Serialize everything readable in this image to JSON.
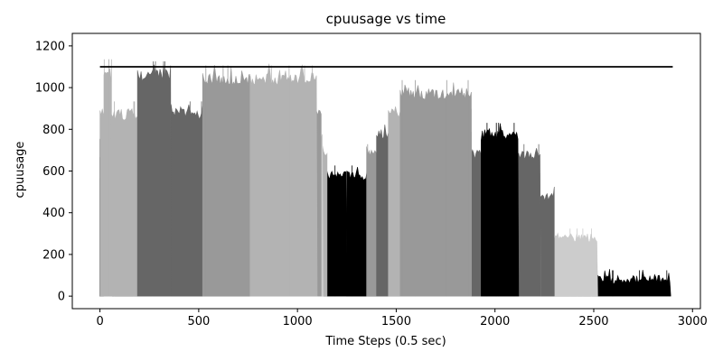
{
  "chart_data": {
    "type": "area",
    "title": "cpuusage vs time",
    "xlabel": "Time Steps (0.5 sec)",
    "ylabel": "cpuusage",
    "xlim": [
      -140,
      3040
    ],
    "ylim": [
      -60,
      1260
    ],
    "xticks": [
      0,
      500,
      1000,
      1500,
      2000,
      2500,
      3000
    ],
    "yticks": [
      0,
      200,
      400,
      600,
      800,
      1000,
      1200
    ],
    "grid": false,
    "legend": "none",
    "capacity_line": {
      "y": 1100,
      "x": [
        0,
        2900
      ],
      "color": "#000000"
    },
    "series_palette": [
      "#b3b3b3",
      "#666666",
      "#000000",
      "#999999",
      "#cccccc",
      "#444444"
    ],
    "series": [
      {
        "start": 0,
        "end": 360,
        "level": 100,
        "jitter": 18,
        "color": "#b3b3b3"
      },
      {
        "start": 360,
        "end": 1260,
        "level": 100,
        "jitter": 18,
        "color": "#666666"
      },
      {
        "start": 1260,
        "end": 1870,
        "level": 100,
        "jitter": 18,
        "color": "#999999"
      },
      {
        "start": 1870,
        "end": 2000,
        "level": 100,
        "jitter": 18,
        "color": "#444444"
      },
      {
        "start": 2000,
        "end": 2300,
        "level": 100,
        "jitter": 18,
        "color": "#b3b3b3"
      },
      {
        "start": 2300,
        "end": 2520,
        "level": 100,
        "jitter": 18,
        "color": "#999999"
      },
      {
        "start": 2520,
        "end": 2890,
        "level": 100,
        "jitter": 20,
        "color": "#000000"
      },
      {
        "start": 40,
        "end": 360,
        "level": 200,
        "jitter": 20,
        "color": "#666666"
      },
      {
        "start": 360,
        "end": 700,
        "level": 200,
        "jitter": 20,
        "color": "#000000"
      },
      {
        "start": 700,
        "end": 1100,
        "level": 200,
        "jitter": 20,
        "color": "#999999"
      },
      {
        "start": 1100,
        "end": 1250,
        "level": 200,
        "jitter": 20,
        "color": "#b3b3b3"
      },
      {
        "start": 1250,
        "end": 1880,
        "level": 200,
        "jitter": 20,
        "color": "#666666"
      },
      {
        "start": 1880,
        "end": 2300,
        "level": 200,
        "jitter": 20,
        "color": "#cccccc"
      },
      {
        "start": 2300,
        "end": 2520,
        "level": 200,
        "jitter": 20,
        "color": "#000000"
      },
      {
        "start": 20,
        "end": 360,
        "level": 300,
        "jitter": 20,
        "color": "#999999"
      },
      {
        "start": 360,
        "end": 830,
        "level": 300,
        "jitter": 20,
        "color": "#666666"
      },
      {
        "start": 830,
        "end": 1250,
        "level": 300,
        "jitter": 20,
        "color": "#b3b3b3"
      },
      {
        "start": 1250,
        "end": 1880,
        "level": 300,
        "jitter": 20,
        "color": "#999999"
      },
      {
        "start": 1880,
        "end": 2300,
        "level": 300,
        "jitter": 20,
        "color": "#666666"
      },
      {
        "start": 2300,
        "end": 2520,
        "level": 300,
        "jitter": 20,
        "color": "#cccccc"
      },
      {
        "start": 10,
        "end": 360,
        "level": 400,
        "jitter": 22,
        "color": "#000000"
      },
      {
        "start": 360,
        "end": 740,
        "level": 400,
        "jitter": 22,
        "color": "#000000"
      },
      {
        "start": 740,
        "end": 1250,
        "level": 400,
        "jitter": 22,
        "color": "#999999"
      },
      {
        "start": 1250,
        "end": 1900,
        "level": 400,
        "jitter": 22,
        "color": "#b3b3b3"
      },
      {
        "start": 1900,
        "end": 2300,
        "level": 400,
        "jitter": 22,
        "color": "#999999"
      },
      {
        "start": 10,
        "end": 360,
        "level": 500,
        "jitter": 22,
        "color": "#b3b3b3"
      },
      {
        "start": 360,
        "end": 760,
        "level": 500,
        "jitter": 22,
        "color": "#666666"
      },
      {
        "start": 760,
        "end": 1250,
        "level": 500,
        "jitter": 22,
        "color": "#b3b3b3"
      },
      {
        "start": 1250,
        "end": 1880,
        "level": 500,
        "jitter": 22,
        "color": "#444444"
      },
      {
        "start": 1880,
        "end": 2300,
        "level": 500,
        "jitter": 22,
        "color": "#666666"
      },
      {
        "start": 0,
        "end": 360,
        "level": 600,
        "jitter": 22,
        "color": "#999999"
      },
      {
        "start": 360,
        "end": 760,
        "level": 600,
        "jitter": 22,
        "color": "#cccccc"
      },
      {
        "start": 760,
        "end": 1250,
        "level": 600,
        "jitter": 22,
        "color": "#000000"
      },
      {
        "start": 1250,
        "end": 1880,
        "level": 600,
        "jitter": 22,
        "color": "#000000"
      },
      {
        "start": 1880,
        "end": 2230,
        "level": 600,
        "jitter": 22,
        "color": "#b3b3b3"
      },
      {
        "start": 0,
        "end": 360,
        "level": 700,
        "jitter": 24,
        "color": "#666666"
      },
      {
        "start": 360,
        "end": 760,
        "level": 700,
        "jitter": 24,
        "color": "#000000"
      },
      {
        "start": 760,
        "end": 1150,
        "level": 700,
        "jitter": 24,
        "color": "#b3b3b3"
      },
      {
        "start": 1350,
        "end": 1880,
        "level": 700,
        "jitter": 24,
        "color": "#999999"
      },
      {
        "start": 1880,
        "end": 2230,
        "level": 700,
        "jitter": 24,
        "color": "#666666"
      },
      {
        "start": 0,
        "end": 360,
        "level": 800,
        "jitter": 26,
        "color": "#000000"
      },
      {
        "start": 360,
        "end": 760,
        "level": 800,
        "jitter": 26,
        "color": "#999999"
      },
      {
        "start": 760,
        "end": 1130,
        "level": 800,
        "jitter": 26,
        "color": "#cccccc"
      },
      {
        "start": 1400,
        "end": 1880,
        "level": 800,
        "jitter": 26,
        "color": "#666666"
      },
      {
        "start": 1930,
        "end": 2120,
        "level": 800,
        "jitter": 26,
        "color": "#000000"
      },
      {
        "start": 0,
        "end": 360,
        "level": 900,
        "jitter": 28,
        "color": "#b3b3b3"
      },
      {
        "start": 360,
        "end": 760,
        "level": 900,
        "jitter": 28,
        "color": "#666666"
      },
      {
        "start": 760,
        "end": 1120,
        "level": 900,
        "jitter": 28,
        "color": "#999999"
      },
      {
        "start": 1460,
        "end": 1880,
        "level": 900,
        "jitter": 28,
        "color": "#b3b3b3"
      },
      {
        "start": 20,
        "end": 60,
        "level": 1100,
        "jitter": 30,
        "color": "#b3b3b3"
      },
      {
        "start": 190,
        "end": 360,
        "level": 1090,
        "jitter": 30,
        "color": "#666666"
      },
      {
        "start": 520,
        "end": 760,
        "level": 1070,
        "jitter": 30,
        "color": "#999999"
      },
      {
        "start": 760,
        "end": 1100,
        "level": 1070,
        "jitter": 30,
        "color": "#b3b3b3"
      },
      {
        "start": 1520,
        "end": 1880,
        "level": 1000,
        "jitter": 30,
        "color": "#999999"
      }
    ]
  }
}
